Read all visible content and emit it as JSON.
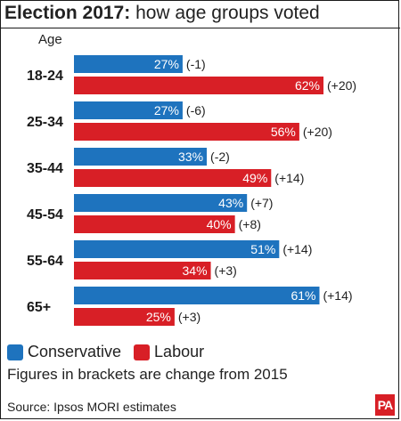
{
  "header": {
    "title_bold": "Election 2017:",
    "title_rest": " how age groups voted",
    "axis_heading": "Age"
  },
  "colors": {
    "conservative": "#1e73be",
    "labour": "#d81f26"
  },
  "chart_data": {
    "type": "bar",
    "orientation": "horizontal",
    "categories": [
      "18-24",
      "25-34",
      "35-44",
      "45-54",
      "55-64",
      "65+"
    ],
    "series": [
      {
        "name": "Conservative",
        "values": [
          27,
          27,
          33,
          43,
          51,
          61
        ],
        "labels": [
          "27%",
          "27%",
          "33%",
          "43%",
          "51%",
          "61%"
        ],
        "changes": [
          "(-1)",
          "(-6)",
          "(-2)",
          "(+7)",
          "(+14)",
          "(+14)"
        ]
      },
      {
        "name": "Labour",
        "values": [
          62,
          56,
          49,
          40,
          34,
          25
        ],
        "labels": [
          "62%",
          "56%",
          "49%",
          "40%",
          "34%",
          "25%"
        ],
        "changes": [
          "(+20)",
          "(+20)",
          "(+14)",
          "(+8)",
          "(+3)",
          "(+3)"
        ]
      }
    ],
    "xlim": [
      0,
      62
    ]
  },
  "legend": {
    "conservative": "Conservative",
    "labour": "Labour"
  },
  "footnote": "Figures in brackets are change from 2015",
  "source": "Source: Ipsos MORI estimates",
  "logo": "PA"
}
